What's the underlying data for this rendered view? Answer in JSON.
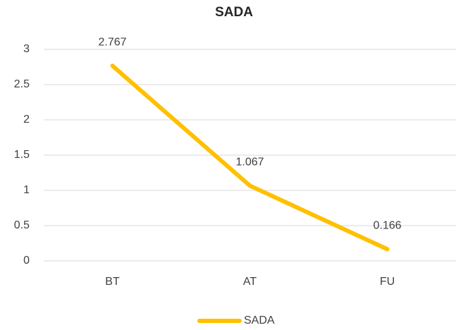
{
  "chart_data": {
    "type": "line",
    "title": "SADA",
    "categories": [
      "BT",
      "AT",
      "FU"
    ],
    "series": [
      {
        "name": "SADA",
        "color": "#ffc000",
        "values": [
          2.767,
          1.067,
          0.166
        ]
      }
    ],
    "ylim": [
      0,
      3
    ],
    "yticks": [
      0,
      0.5,
      1,
      1.5,
      2,
      2.5,
      3
    ],
    "grid": true,
    "legend": "bottom"
  }
}
